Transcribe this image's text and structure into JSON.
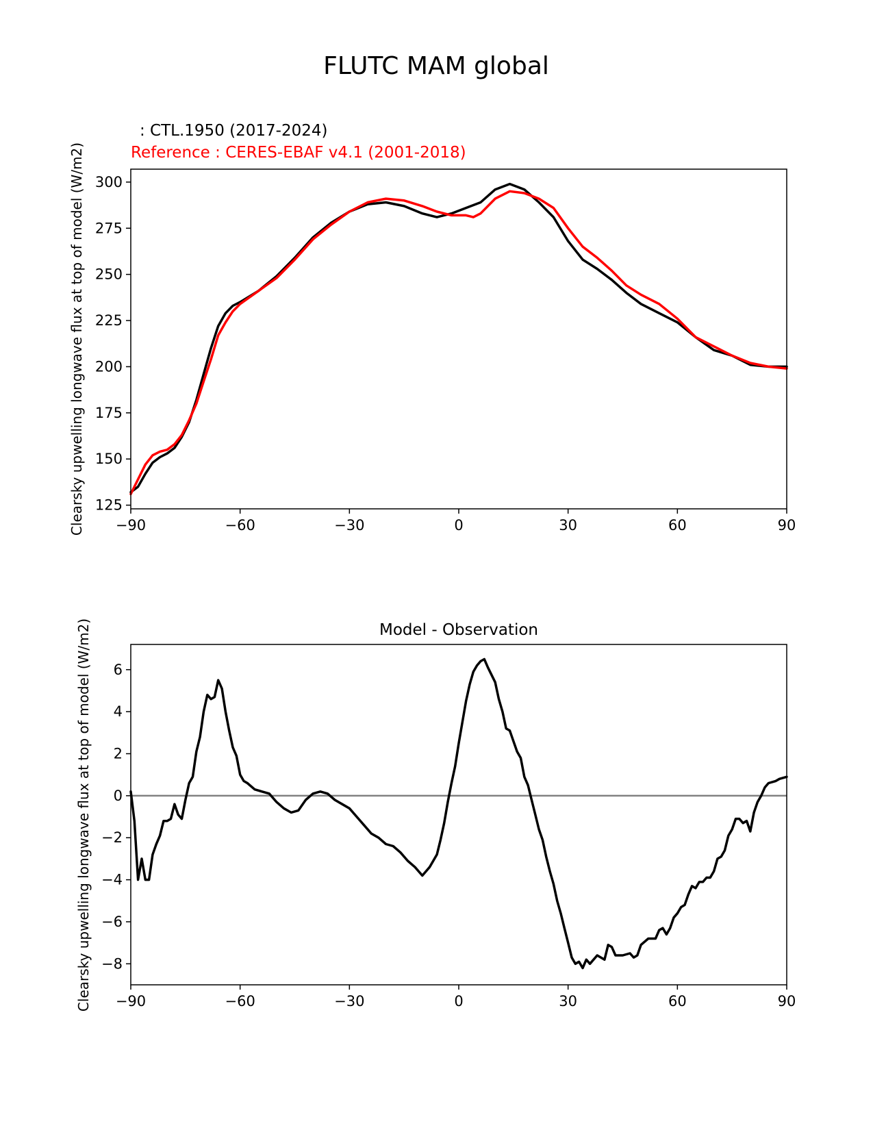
{
  "figure": {
    "title": "FLUTC MAM global"
  },
  "colors": {
    "model": "#000000",
    "reference": "#ff0000",
    "zero_line": "#808080"
  },
  "chart_data": [
    {
      "type": "line",
      "legend": {
        "model_label": ": CTL.1950 (2017-2024)",
        "reference_label": "Reference : CERES-EBAF v4.1 (2001-2018)"
      },
      "ylabel": "Clearsky upwelling longwave flux at top of model (W/m2)",
      "xlabel": "",
      "xlim": [
        -90,
        90
      ],
      "ylim": [
        123,
        307
      ],
      "xticks": [
        -90,
        -60,
        -30,
        0,
        30,
        60,
        90
      ],
      "xtick_labels": [
        "−90",
        "−60",
        "−30",
        "0",
        "30",
        "60",
        "90"
      ],
      "yticks": [
        125,
        150,
        175,
        200,
        225,
        250,
        275,
        300
      ],
      "ytick_labels": [
        "125",
        "150",
        "175",
        "200",
        "225",
        "250",
        "275",
        "300"
      ],
      "series": [
        {
          "name": "model",
          "points": [
            [
              -90,
              132
            ],
            [
              -88,
              135
            ],
            [
              -86,
              142
            ],
            [
              -84,
              148
            ],
            [
              -82,
              151
            ],
            [
              -80,
              153
            ],
            [
              -78,
              156
            ],
            [
              -76,
              162
            ],
            [
              -74,
              170
            ],
            [
              -72,
              182
            ],
            [
              -70,
              196
            ],
            [
              -68,
              210
            ],
            [
              -66,
              222
            ],
            [
              -64,
              229
            ],
            [
              -62,
              233
            ],
            [
              -60,
              235
            ],
            [
              -55,
              241
            ],
            [
              -50,
              249
            ],
            [
              -45,
              259
            ],
            [
              -40,
              270
            ],
            [
              -35,
              278
            ],
            [
              -30,
              284
            ],
            [
              -25,
              288
            ],
            [
              -20,
              289
            ],
            [
              -15,
              287
            ],
            [
              -10,
              283
            ],
            [
              -6,
              281
            ],
            [
              -2,
              283
            ],
            [
              2,
              286
            ],
            [
              6,
              289
            ],
            [
              10,
              296
            ],
            [
              14,
              299
            ],
            [
              18,
              296
            ],
            [
              22,
              289
            ],
            [
              26,
              281
            ],
            [
              30,
              268
            ],
            [
              34,
              258
            ],
            [
              38,
              253
            ],
            [
              42,
              247
            ],
            [
              46,
              240
            ],
            [
              50,
              234
            ],
            [
              55,
              229
            ],
            [
              60,
              224
            ],
            [
              65,
              216
            ],
            [
              70,
              209
            ],
            [
              75,
              206
            ],
            [
              80,
              201
            ],
            [
              85,
              200
            ],
            [
              90,
              200
            ]
          ]
        },
        {
          "name": "reference",
          "points": [
            [
              -90,
              131
            ],
            [
              -88,
              139
            ],
            [
              -86,
              147
            ],
            [
              -84,
              152
            ],
            [
              -82,
              154
            ],
            [
              -80,
              155
            ],
            [
              -78,
              158
            ],
            [
              -76,
              163
            ],
            [
              -74,
              171
            ],
            [
              -72,
              180
            ],
            [
              -70,
              192
            ],
            [
              -68,
              204
            ],
            [
              -66,
              217
            ],
            [
              -64,
              224
            ],
            [
              -62,
              230
            ],
            [
              -60,
              234
            ],
            [
              -55,
              241
            ],
            [
              -50,
              248
            ],
            [
              -45,
              258
            ],
            [
              -40,
              269
            ],
            [
              -35,
              277
            ],
            [
              -30,
              284
            ],
            [
              -25,
              289
            ],
            [
              -20,
              291
            ],
            [
              -15,
              290
            ],
            [
              -10,
              287
            ],
            [
              -6,
              284
            ],
            [
              -2,
              282
            ],
            [
              2,
              282
            ],
            [
              4,
              281
            ],
            [
              6,
              283
            ],
            [
              10,
              291
            ],
            [
              14,
              295
            ],
            [
              18,
              294
            ],
            [
              22,
              291
            ],
            [
              26,
              286
            ],
            [
              30,
              275
            ],
            [
              34,
              265
            ],
            [
              38,
              259
            ],
            [
              42,
              252
            ],
            [
              46,
              244
            ],
            [
              50,
              239
            ],
            [
              55,
              234
            ],
            [
              60,
              226
            ],
            [
              65,
              216
            ],
            [
              70,
              211
            ],
            [
              75,
              206
            ],
            [
              80,
              202
            ],
            [
              85,
              200
            ],
            [
              90,
              199
            ]
          ]
        }
      ]
    },
    {
      "type": "line",
      "title": "Model - Observation",
      "ylabel": "Clearsky upwelling longwave flux at top of model (W/m2)",
      "xlabel": "",
      "xlim": [
        -90,
        90
      ],
      "ylim": [
        -9,
        7.2
      ],
      "xticks": [
        -90,
        -60,
        -30,
        0,
        30,
        60,
        90
      ],
      "xtick_labels": [
        "−90",
        "−60",
        "−30",
        "0",
        "30",
        "60",
        "90"
      ],
      "yticks": [
        -8,
        -6,
        -4,
        -2,
        0,
        2,
        4,
        6
      ],
      "ytick_labels": [
        "−8",
        "−6",
        "−4",
        "−2",
        "0",
        "2",
        "4",
        "6"
      ],
      "zero_line": 0,
      "series": [
        {
          "name": "difference",
          "points": [
            [
              -90,
              0.2
            ],
            [
              -89,
              -1.2
            ],
            [
              -88,
              -4.0
            ],
            [
              -87,
              -3.0
            ],
            [
              -86,
              -4.0
            ],
            [
              -85,
              -4.0
            ],
            [
              -84,
              -2.8
            ],
            [
              -83,
              -2.3
            ],
            [
              -82,
              -1.9
            ],
            [
              -81,
              -1.2
            ],
            [
              -80,
              -1.2
            ],
            [
              -79,
              -1.1
            ],
            [
              -78,
              -0.4
            ],
            [
              -77,
              -0.9
            ],
            [
              -76,
              -1.1
            ],
            [
              -75,
              -0.2
            ],
            [
              -74,
              0.6
            ],
            [
              -73,
              0.9
            ],
            [
              -72,
              2.1
            ],
            [
              -71,
              2.8
            ],
            [
              -70,
              4.0
            ],
            [
              -69,
              4.8
            ],
            [
              -68,
              4.6
            ],
            [
              -67,
              4.7
            ],
            [
              -66,
              5.5
            ],
            [
              -65,
              5.1
            ],
            [
              -64,
              4.0
            ],
            [
              -63,
              3.1
            ],
            [
              -62,
              2.3
            ],
            [
              -61,
              1.9
            ],
            [
              -60,
              1.0
            ],
            [
              -59,
              0.7
            ],
            [
              -58,
              0.6
            ],
            [
              -56,
              0.3
            ],
            [
              -54,
              0.2
            ],
            [
              -52,
              0.1
            ],
            [
              -50,
              -0.3
            ],
            [
              -48,
              -0.6
            ],
            [
              -46,
              -0.8
            ],
            [
              -44,
              -0.7
            ],
            [
              -42,
              -0.2
            ],
            [
              -40,
              0.1
            ],
            [
              -38,
              0.2
            ],
            [
              -36,
              0.1
            ],
            [
              -34,
              -0.2
            ],
            [
              -32,
              -0.4
            ],
            [
              -30,
              -0.6
            ],
            [
              -28,
              -1.0
            ],
            [
              -26,
              -1.4
            ],
            [
              -24,
              -1.8
            ],
            [
              -22,
              -2.0
            ],
            [
              -20,
              -2.3
            ],
            [
              -18,
              -2.4
            ],
            [
              -16,
              -2.7
            ],
            [
              -14,
              -3.1
            ],
            [
              -12,
              -3.4
            ],
            [
              -10,
              -3.8
            ],
            [
              -8,
              -3.4
            ],
            [
              -6,
              -2.8
            ],
            [
              -5,
              -2.1
            ],
            [
              -4,
              -1.3
            ],
            [
              -3,
              -0.3
            ],
            [
              -2,
              0.6
            ],
            [
              -1,
              1.4
            ],
            [
              0,
              2.5
            ],
            [
              1,
              3.5
            ],
            [
              2,
              4.5
            ],
            [
              3,
              5.3
            ],
            [
              4,
              5.9
            ],
            [
              5,
              6.2
            ],
            [
              6,
              6.4
            ],
            [
              7,
              6.5
            ],
            [
              8,
              6.1
            ],
            [
              10,
              5.4
            ],
            [
              11,
              4.6
            ],
            [
              12,
              4.0
            ],
            [
              13,
              3.2
            ],
            [
              14,
              3.1
            ],
            [
              15,
              2.6
            ],
            [
              16,
              2.1
            ],
            [
              17,
              1.8
            ],
            [
              18,
              0.9
            ],
            [
              19,
              0.5
            ],
            [
              20,
              -0.2
            ],
            [
              21,
              -0.9
            ],
            [
              22,
              -1.6
            ],
            [
              23,
              -2.1
            ],
            [
              24,
              -2.9
            ],
            [
              25,
              -3.6
            ],
            [
              26,
              -4.2
            ],
            [
              27,
              -5.0
            ],
            [
              28,
              -5.6
            ],
            [
              29,
              -6.3
            ],
            [
              30,
              -7.0
            ],
            [
              31,
              -7.7
            ],
            [
              32,
              -8.0
            ],
            [
              33,
              -7.9
            ],
            [
              34,
              -8.2
            ],
            [
              35,
              -7.8
            ],
            [
              36,
              -8.0
            ],
            [
              38,
              -7.6
            ],
            [
              40,
              -7.8
            ],
            [
              41,
              -7.1
            ],
            [
              42,
              -7.2
            ],
            [
              43,
              -7.6
            ],
            [
              45,
              -7.6
            ],
            [
              47,
              -7.5
            ],
            [
              48,
              -7.7
            ],
            [
              49,
              -7.6
            ],
            [
              50,
              -7.1
            ],
            [
              52,
              -6.8
            ],
            [
              54,
              -6.8
            ],
            [
              55,
              -6.4
            ],
            [
              56,
              -6.3
            ],
            [
              57,
              -6.6
            ],
            [
              58,
              -6.3
            ],
            [
              59,
              -5.8
            ],
            [
              60,
              -5.6
            ],
            [
              61,
              -5.3
            ],
            [
              62,
              -5.2
            ],
            [
              63,
              -4.7
            ],
            [
              64,
              -4.3
            ],
            [
              65,
              -4.4
            ],
            [
              66,
              -4.1
            ],
            [
              67,
              -4.1
            ],
            [
              68,
              -3.9
            ],
            [
              69,
              -3.9
            ],
            [
              70,
              -3.6
            ],
            [
              71,
              -3.0
            ],
            [
              72,
              -2.9
            ],
            [
              73,
              -2.6
            ],
            [
              74,
              -1.9
            ],
            [
              75,
              -1.6
            ],
            [
              76,
              -1.1
            ],
            [
              77,
              -1.1
            ],
            [
              78,
              -1.3
            ],
            [
              79,
              -1.2
            ],
            [
              80,
              -1.7
            ],
            [
              81,
              -0.8
            ],
            [
              82,
              -0.3
            ],
            [
              83,
              0.0
            ],
            [
              84,
              0.4
            ],
            [
              85,
              0.6
            ],
            [
              87,
              0.7
            ],
            [
              88,
              0.8
            ],
            [
              89,
              0.85
            ],
            [
              90,
              0.9
            ]
          ]
        }
      ]
    }
  ]
}
